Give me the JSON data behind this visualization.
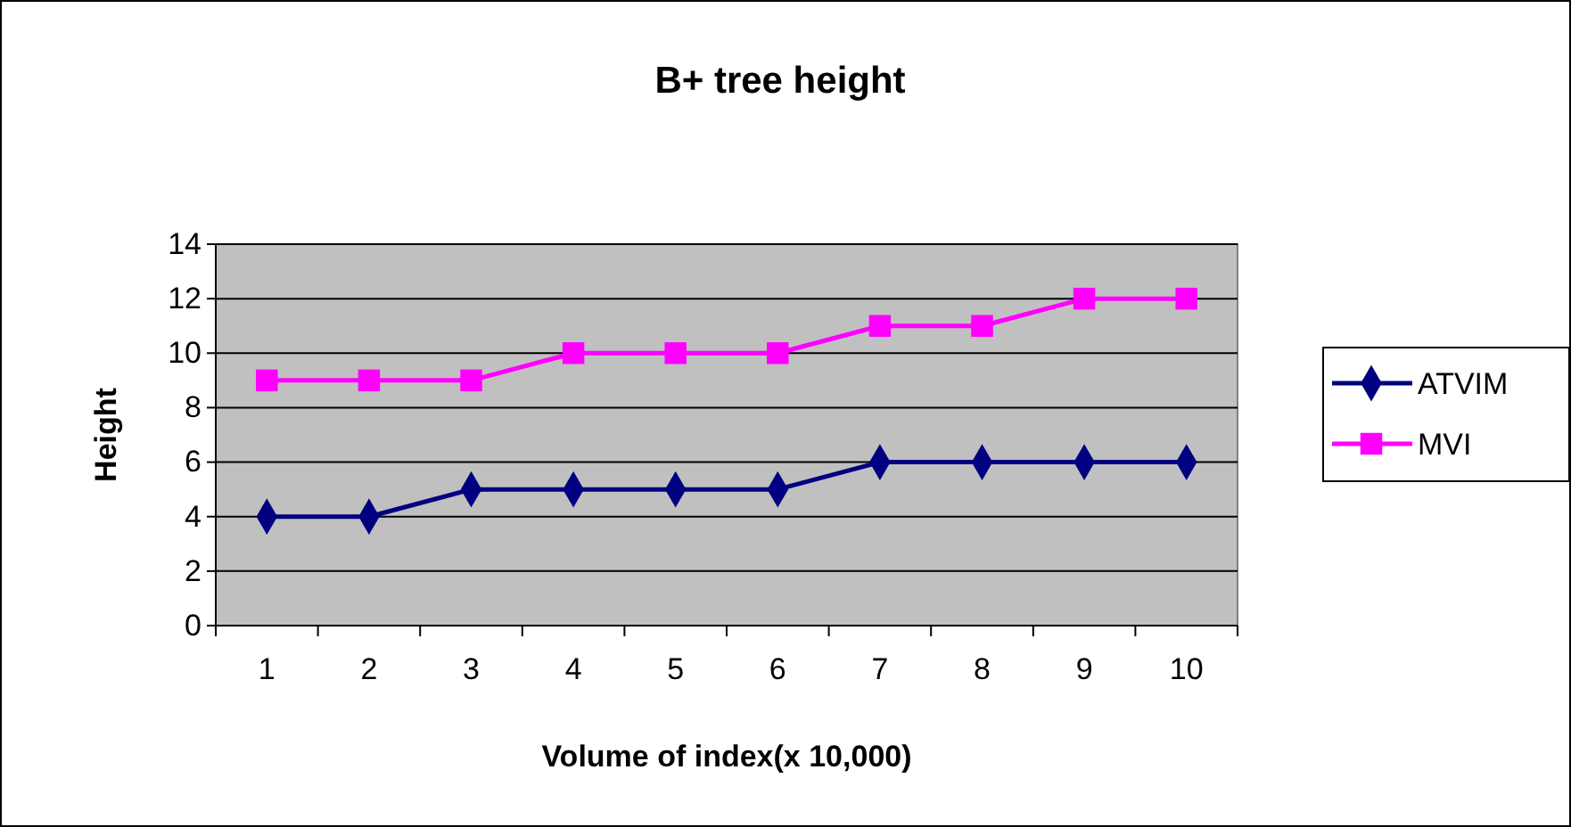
{
  "chart_data": {
    "type": "line",
    "title": "B+ tree height",
    "xlabel": "Volume of index(x 10,000)",
    "ylabel": "Height",
    "categories": [
      "1",
      "2",
      "3",
      "4",
      "5",
      "6",
      "7",
      "8",
      "9",
      "10"
    ],
    "series": [
      {
        "name": "ATVIM",
        "color": "#000080",
        "marker": "diamond",
        "values": [
          4,
          4,
          5,
          5,
          5,
          5,
          6,
          6,
          6,
          6
        ]
      },
      {
        "name": "MVI",
        "color": "#ff00ff",
        "marker": "square",
        "values": [
          9,
          9,
          9,
          10,
          10,
          10,
          11,
          11,
          12,
          12
        ]
      }
    ],
    "ylim": [
      0,
      14
    ],
    "yticks": [
      0,
      2,
      4,
      6,
      8,
      10,
      12,
      14
    ],
    "grid": "y",
    "legend": "right",
    "line_style": "solid"
  }
}
